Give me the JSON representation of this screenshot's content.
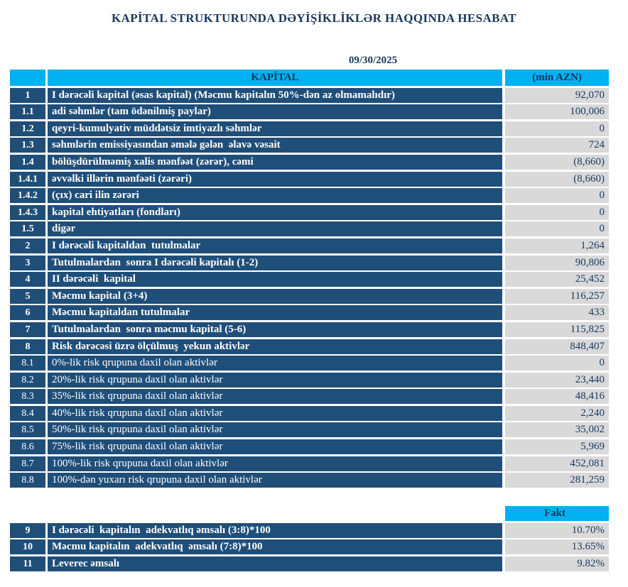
{
  "report": {
    "title": "KAPİTAL STRUKTURUNDA DƏYİŞİKLİKLƏR HAQQINDA HESABAT",
    "date": "09/30/2025"
  },
  "colors": {
    "header_cyan": "#00B0F0",
    "row_navy": "#1F4E79",
    "value_bg_gray": "#D9D9D9",
    "text_navy": "#17375E"
  },
  "main_table": {
    "header": {
      "num": "",
      "label": "KAPİTAL",
      "value": "(min AZN)"
    },
    "rows": [
      {
        "num": "1",
        "label": "I dərəcəli kapital (əsas kapital) (Məcmu kapitalın 50%-dən az olmamalıdır)",
        "value": "92,070"
      },
      {
        "num": "1.1",
        "label": "adi səhmlər (tam ödənilmiş paylar)",
        "value": "100,006"
      },
      {
        "num": "1.2",
        "label": "qeyri-kumulyativ müddətsiz imtiyazlı səhmlər",
        "value": "0"
      },
      {
        "num": "1.3",
        "label": "səhmlərin emissiyasından əmələ gələn  əlavə vəsait",
        "value": "724"
      },
      {
        "num": "1.4",
        "label": "bölüşdürülməmiş xalis mənfəət (zərər), cəmi",
        "value": "(8,660)"
      },
      {
        "num": "1.4.1",
        "label": "əvvəlki illərin mənfəəti (zərəri)",
        "value": "(8,660)"
      },
      {
        "num": "1.4.2",
        "label": "(çıx) cari ilin zərəri",
        "value": "0"
      },
      {
        "num": "1.4.3",
        "label": "kapital ehtiyatları (fondları)",
        "value": "0"
      },
      {
        "num": "1.5",
        "label": "digər",
        "value": "0"
      },
      {
        "num": "2",
        "label": "I dərəcəli kapitaldan  tutulmalar",
        "value": "1,264"
      },
      {
        "num": "3",
        "label": "Tutulmalardan  sonra I dərəcəli kapitalı (1-2)",
        "value": "90,806"
      },
      {
        "num": "4",
        "label": "II dərəcəli  kapital",
        "value": "25,452"
      },
      {
        "num": "5",
        "label": "Məcmu kapital (3+4)",
        "value": "116,257"
      },
      {
        "num": "6",
        "label": "Məcmu kapitaldan tutulmalar",
        "value": "433"
      },
      {
        "num": "7",
        "label": "Tutulmalardan  sonra məcmu kapital (5-6)",
        "value": "115,825"
      },
      {
        "num": "8",
        "label": "Risk dərəcəsi üzrə ölçülmuş  yekun aktivlər",
        "value": "848,407"
      },
      {
        "num": "8.1",
        "label": "0%-lik risk qrupuna daxil olan aktivlər",
        "value": "0"
      },
      {
        "num": "8.2",
        "label": "20%-lik risk qrupuna daxil olan aktivlər",
        "value": "23,440"
      },
      {
        "num": "8.3",
        "label": "35%-lik risk qrupuna daxil olan aktivlər",
        "value": "48,416"
      },
      {
        "num": "8.4",
        "label": "40%-lik risk qrupuna daxil olan aktivlər",
        "value": "2,240"
      },
      {
        "num": "8.5",
        "label": "50%-lik risk qrupuna daxil olan aktivlər",
        "value": "35,002"
      },
      {
        "num": "8.6",
        "label": "75%-lik risk qrupuna daxil olan aktivlər",
        "value": "5,969"
      },
      {
        "num": "8.7",
        "label": "100%-lik risk qrupuna daxil olan aktivlər",
        "value": "452,081"
      },
      {
        "num": "8.8",
        "label": "100%-dən yuxarı risk qrupuna daxil olan aktivlər",
        "value": "281,259"
      }
    ]
  },
  "ratio_table": {
    "header": {
      "value": "Fakt"
    },
    "rows": [
      {
        "num": "9",
        "label": "I dərəcəli  kapitalın  adekvatlıq əmsalı (3:8)*100",
        "value": "10.70%"
      },
      {
        "num": "10",
        "label": "Məcmu kapitalın  adekvatlıq  əmsalı (7:8)*100",
        "value": "13.65%"
      },
      {
        "num": "11",
        "label": "Leverec əmsalı",
        "value": "9.82%"
      }
    ]
  }
}
